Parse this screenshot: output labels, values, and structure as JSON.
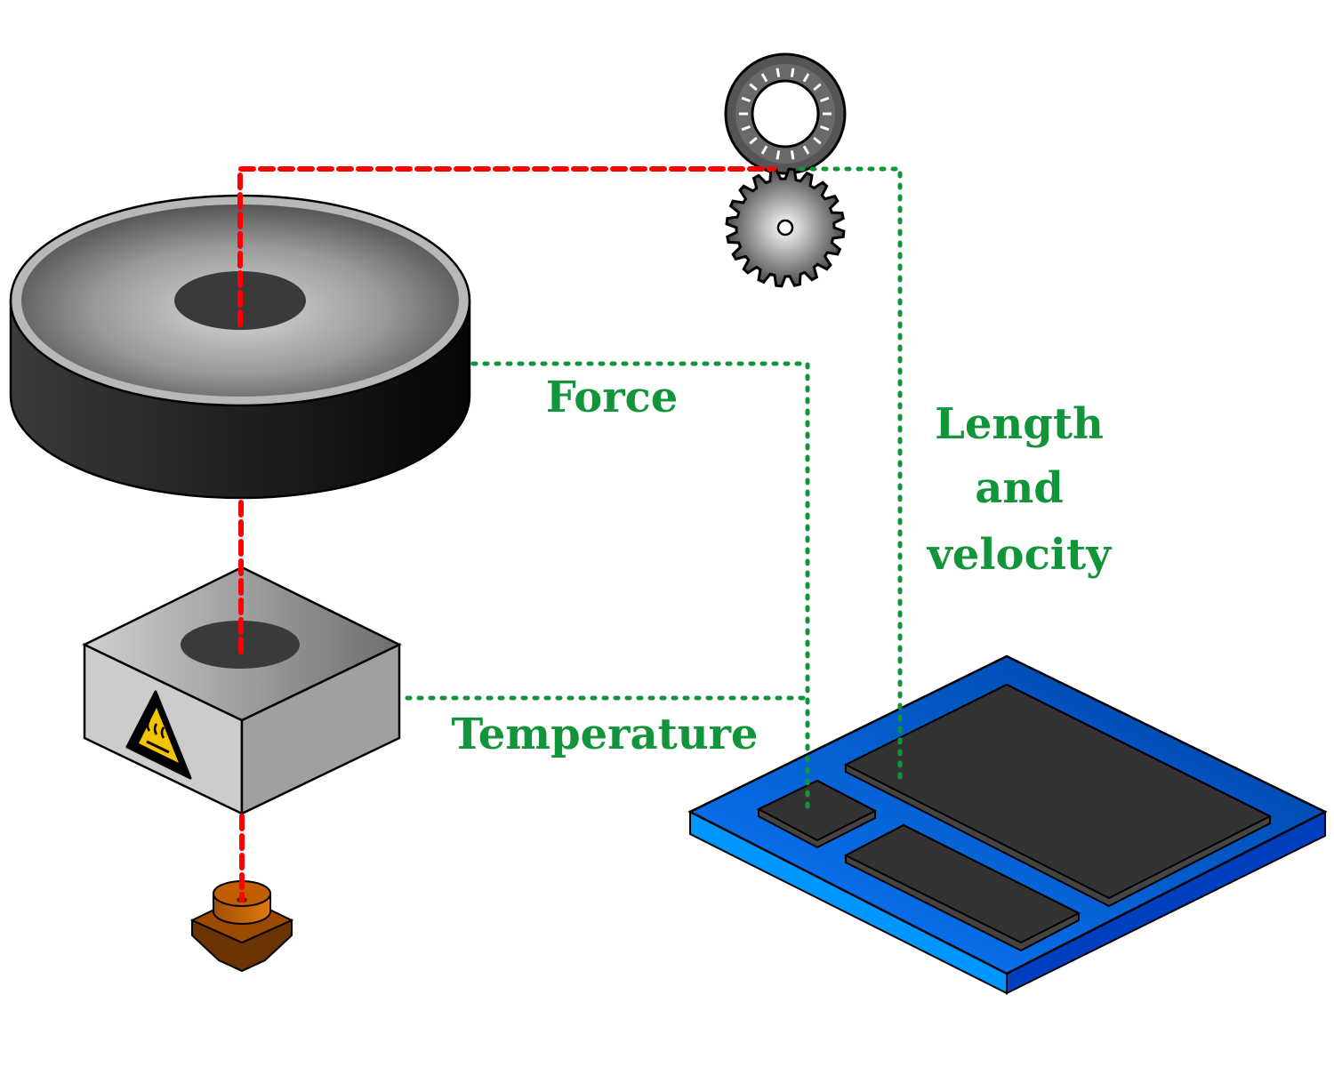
{
  "labels": {
    "force": "Force",
    "temperature": "Temperature",
    "length_line1": "Length",
    "length_line2": "and",
    "length_line3": "velocity"
  },
  "colors": {
    "filament": "#ff0000",
    "sensor_line": "#12953a",
    "label_text": "#12953a",
    "board": "#0066ff",
    "chip": "#333333",
    "warning": "#f5c400",
    "nozzle": "#b35a00"
  },
  "icons": {
    "spool": "filament-spool-icon",
    "bearing": "idler-bearing-icon",
    "gear": "drive-gear-icon",
    "heater": "heater-block-icon",
    "hot_surface_warning": "hot-surface-warning-icon",
    "nozzle": "nozzle-icon",
    "board": "control-board-icon"
  }
}
